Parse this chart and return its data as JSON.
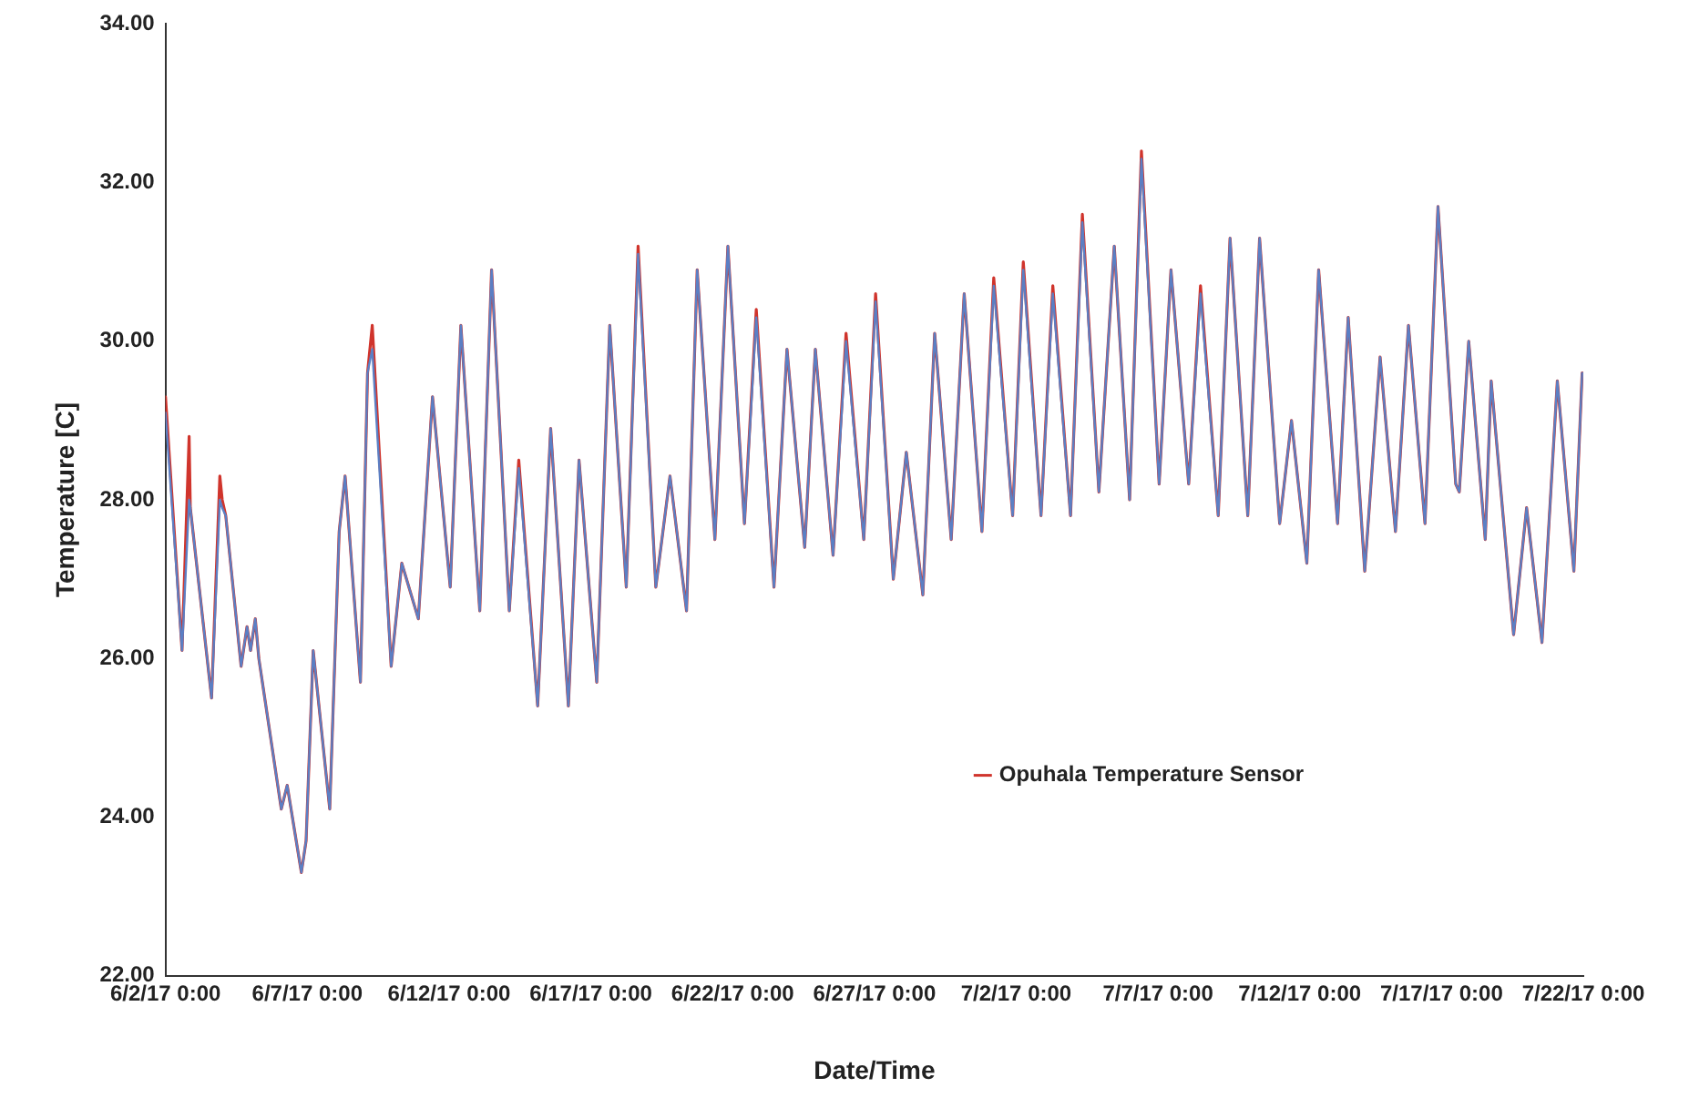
{
  "chart_data": {
    "type": "line",
    "xlabel": "Date/Time",
    "ylabel": "Temperature [C]",
    "x": [
      "--06-02T00:00",
      "--06-02T14:00",
      "--06-02T20:00",
      "--06-02T21:00",
      "--06-03T00:00",
      "--06-03T15:00",
      "--06-03T22:00",
      "--06-04T00:00",
      "--06-04T03:00",
      "--06-04T16:00",
      "--06-04T21:00",
      "--06-05T00:00",
      "--06-05T04:00",
      "--06-05T07:00",
      "--06-05T18:00",
      "--06-06T02:00",
      "--06-06T07:00",
      "--06-06T19:00",
      "--06-06T23:00",
      "--06-07T05:00",
      "--06-07T19:00",
      "--06-08T03:00",
      "--06-08T08:00",
      "--06-08T21:00",
      "--06-09T03:00",
      "--06-09T07:00",
      "--06-09T23:00",
      "--06-10T08:00",
      "--06-10T22:00",
      "--06-11T10:00",
      "--06-12T01:00",
      "--06-12T10:00",
      "--06-13T02:00",
      "--06-13T12:00",
      "--06-14T03:00",
      "--06-14T11:00",
      "--06-15T03:00",
      "--06-15T14:00",
      "--06-16T05:00",
      "--06-16T14:00",
      "--06-17T05:00",
      "--06-17T16:00",
      "--06-18T06:00",
      "--06-18T16:00",
      "--06-19T07:00",
      "--06-19T19:00",
      "--06-20T09:00",
      "--06-20T18:00",
      "--06-21T09:00",
      "--06-21T20:00",
      "--06-22T10:00",
      "--06-22T20:00",
      "--06-23T11:00",
      "--06-23T22:00",
      "--06-24T13:00",
      "--06-24T22:00",
      "--06-25T13:00",
      "--06-26T00:00",
      "--06-26T15:00",
      "--06-27T01:00",
      "--06-27T16:00",
      "--06-28T03:00",
      "--06-28T17:00",
      "--06-29T03:00",
      "--06-29T17:00",
      "--06-30T04:00",
      "--06-30T19:00",
      "--07-01T05:00",
      "--07-01T21:00",
      "--07-02T06:00",
      "--07-02T21:00",
      "--07-03T07:00",
      "--07-03T22:00",
      "--07-04T08:00",
      "--07-04T22:00",
      "--07-05T11:00",
      "--07-06T00:00",
      "--07-06T10:00",
      "--07-07T01:00",
      "--07-07T11:00",
      "--07-08T02:00",
      "--07-08T12:00",
      "--07-09T03:00",
      "--07-09T13:00",
      "--07-10T04:00",
      "--07-10T14:00",
      "--07-11T07:00",
      "--07-11T17:00",
      "--07-12T06:00",
      "--07-12T16:00",
      "--07-13T08:00",
      "--07-13T17:00",
      "--07-14T07:00",
      "--07-14T20:00",
      "--07-15T09:00",
      "--07-15T20:00",
      "--07-16T10:00",
      "--07-16T21:00",
      "--07-17T12:00",
      "--07-17T15:00",
      "--07-17T23:00",
      "--07-18T13:00",
      "--07-18T18:00",
      "--07-19T13:00",
      "--07-20T00:00",
      "--07-20T13:00",
      "--07-21T02:00",
      "--07-21T16:00",
      "--07-21T23:00"
    ],
    "series": [
      {
        "color": "#5b7fc4",
        "values": [
          29.1,
          26.1,
          28.0,
          27.9,
          27.5,
          25.5,
          28.0,
          27.9,
          27.8,
          25.9,
          26.4,
          26.1,
          26.5,
          26.0,
          24.9,
          24.1,
          24.4,
          23.3,
          23.7,
          26.1,
          24.1,
          27.6,
          28.3,
          25.7,
          29.6,
          29.9,
          25.9,
          27.2,
          26.5,
          29.3,
          26.9,
          30.2,
          26.6,
          30.9,
          26.6,
          28.4,
          25.4,
          28.9,
          25.4,
          28.5,
          25.7,
          30.2,
          26.9,
          31.1,
          26.9,
          28.3,
          26.6,
          30.9,
          27.5,
          31.2,
          27.7,
          30.3,
          26.9,
          29.9,
          27.4,
          29.9,
          27.3,
          30.0,
          27.5,
          30.5,
          27.0,
          28.6,
          26.8,
          30.1,
          27.5,
          30.6,
          27.6,
          30.7,
          27.8,
          30.9,
          27.8,
          30.6,
          27.8,
          31.5,
          28.1,
          31.2,
          28.0,
          32.3,
          28.2,
          30.9,
          28.2,
          30.6,
          27.8,
          31.3,
          27.8,
          31.3,
          27.7,
          29.0,
          27.2,
          30.9,
          27.7,
          30.3,
          27.1,
          29.8,
          27.6,
          30.2,
          27.7,
          31.7,
          28.2,
          28.1,
          30.0,
          27.5,
          29.5,
          26.3,
          27.9,
          26.2,
          29.5,
          27.1,
          29.6
        ]
      },
      {
        "name": "Opuhala Temperature Sensor",
        "color": "#d0342c",
        "values": [
          29.3,
          26.1,
          28.8,
          27.9,
          27.5,
          25.5,
          28.3,
          28.0,
          27.8,
          25.9,
          26.4,
          26.1,
          26.5,
          26.0,
          24.9,
          24.1,
          24.4,
          23.3,
          23.7,
          26.1,
          24.1,
          27.6,
          28.3,
          25.7,
          29.6,
          30.2,
          25.9,
          27.2,
          26.5,
          29.3,
          26.9,
          30.2,
          26.6,
          30.9,
          26.6,
          28.5,
          25.4,
          28.9,
          25.4,
          28.5,
          25.7,
          30.2,
          26.9,
          31.2,
          26.9,
          28.3,
          26.6,
          30.9,
          27.5,
          31.2,
          27.7,
          30.4,
          26.9,
          29.9,
          27.4,
          29.9,
          27.3,
          30.1,
          27.5,
          30.6,
          27.0,
          28.6,
          26.8,
          30.1,
          27.5,
          30.6,
          27.6,
          30.8,
          27.8,
          31.0,
          27.8,
          30.7,
          27.8,
          31.6,
          28.1,
          31.2,
          28.0,
          32.4,
          28.2,
          30.9,
          28.2,
          30.7,
          27.8,
          31.3,
          27.8,
          31.3,
          27.7,
          29.0,
          27.2,
          30.9,
          27.7,
          30.3,
          27.1,
          29.8,
          27.6,
          30.2,
          27.7,
          31.7,
          28.2,
          28.1,
          30.0,
          27.5,
          29.5,
          26.3,
          27.9,
          26.2,
          29.5,
          27.1,
          29.6
        ]
      }
    ],
    "xlim": [
      "--06-02",
      "--07-22"
    ],
    "xticks": [
      {
        "value": "--06-02",
        "label": "6/2/17 0:00"
      },
      {
        "value": "--06-07",
        "label": "6/7/17 0:00"
      },
      {
        "value": "--06-12",
        "label": "6/12/17 0:00"
      },
      {
        "value": "--06-17",
        "label": "6/17/17 0:00"
      },
      {
        "value": "--06-22",
        "label": "6/22/17 0:00"
      },
      {
        "value": "--06-27",
        "label": "6/27/17 0:00"
      },
      {
        "value": "--07-02",
        "label": "7/2/17 0:00"
      },
      {
        "value": "--07-07",
        "label": "7/7/17 0:00"
      },
      {
        "value": "--07-12",
        "label": "7/12/17 0:00"
      },
      {
        "value": "--07-17",
        "label": "7/17/17 0:00"
      },
      {
        "value": "--07-22",
        "label": "7/22/17 0:00"
      }
    ],
    "ylim": [
      22,
      34
    ],
    "yticks": [
      {
        "value": 22,
        "label": "22.00"
      },
      {
        "value": 24,
        "label": "24.00"
      },
      {
        "value": 26,
        "label": "26.00"
      },
      {
        "value": 28,
        "label": "28.00"
      },
      {
        "value": 30,
        "label": "30.00"
      },
      {
        "value": 32,
        "label": "32.00"
      },
      {
        "value": 34,
        "label": "34.00"
      }
    ],
    "grid": false,
    "legend": "bottom right",
    "marker": "none",
    "line_style": "solid"
  }
}
